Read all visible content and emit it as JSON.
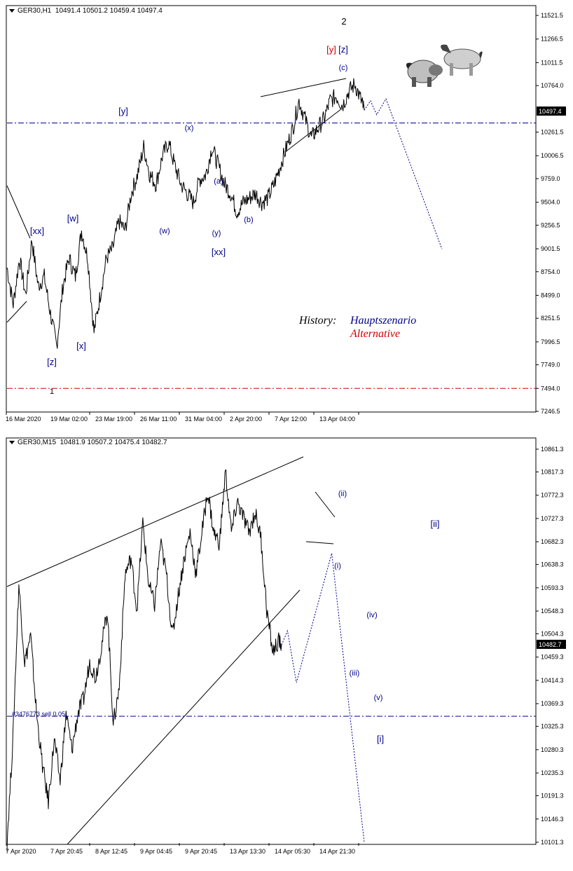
{
  "chart_data": [
    {
      "type": "line",
      "symbol": "GER30,H1",
      "ohlc": "10491.4 10501.2 10459.4 10497.4",
      "current_price": "10497.4",
      "yticks": [
        "11521.5",
        "11266.5",
        "11011.5",
        "10764.0",
        "10497.4",
        "10261.5",
        "10006.5",
        "9759.0",
        "9504.0",
        "9256.5",
        "9001.5",
        "8754.0",
        "8499.0",
        "8251.5",
        "7996.5",
        "7749.0",
        "7494.0",
        "7246.5"
      ],
      "xticks": [
        "16 Mar 2020",
        "19 Mar 02:00",
        "23 Mar 19:00",
        "26 Mar 11:00",
        "31 Mar 04:00",
        "2 Apr 20:00",
        "7 Apr 12:00",
        "13 Apr 04:00"
      ],
      "ylim": [
        7246.5,
        11600
      ],
      "price_series": [
        [
          0,
          8800
        ],
        [
          2,
          8400
        ],
        [
          4,
          8900
        ],
        [
          6,
          8500
        ],
        [
          8,
          9100
        ],
        [
          10,
          8600
        ],
        [
          12,
          8700
        ],
        [
          14,
          8300
        ],
        [
          16,
          7950
        ],
        [
          18,
          8600
        ],
        [
          20,
          8900
        ],
        [
          22,
          8700
        ],
        [
          24,
          9200
        ],
        [
          26,
          8900
        ],
        [
          28,
          8100
        ],
        [
          30,
          8500
        ],
        [
          32,
          8900
        ],
        [
          34,
          9000
        ],
        [
          36,
          9300
        ],
        [
          38,
          9200
        ],
        [
          40,
          9600
        ],
        [
          42,
          9800
        ],
        [
          44,
          10100
        ],
        [
          46,
          9800
        ],
        [
          48,
          9700
        ],
        [
          50,
          10000
        ],
        [
          52,
          10150
        ],
        [
          54,
          9900
        ],
        [
          56,
          9700
        ],
        [
          58,
          9600
        ],
        [
          60,
          9500
        ],
        [
          62,
          9750
        ],
        [
          64,
          9800
        ],
        [
          66,
          10100
        ],
        [
          68,
          9900
        ],
        [
          70,
          9700
        ],
        [
          72,
          9600
        ],
        [
          74,
          9400
        ],
        [
          76,
          9500
        ],
        [
          78,
          9550
        ],
        [
          80,
          9600
        ],
        [
          82,
          9500
        ],
        [
          84,
          9550
        ],
        [
          86,
          9700
        ],
        [
          88,
          9900
        ],
        [
          90,
          10100
        ],
        [
          92,
          10300
        ],
        [
          94,
          10600
        ],
        [
          96,
          10400
        ],
        [
          98,
          10200
        ],
        [
          100,
          10300
        ],
        [
          102,
          10400
        ],
        [
          104,
          10600
        ],
        [
          106,
          10650
        ],
        [
          108,
          10550
        ],
        [
          110,
          10700
        ],
        [
          112,
          10780
        ],
        [
          114,
          10600
        ],
        [
          115,
          10497
        ]
      ],
      "forecast": [
        [
          115,
          10497
        ],
        [
          117,
          10600
        ],
        [
          119,
          10450
        ],
        [
          122,
          10620
        ],
        [
          140,
          9000
        ]
      ],
      "hlines": [
        {
          "value": 10360,
          "color": "#00008b"
        },
        {
          "value": 7494,
          "color": "#cc0000"
        }
      ],
      "wave_labels": [
        "[xx]",
        "[w]",
        "[x]",
        "[z]",
        "1",
        "[y]",
        "(x)",
        "(w)",
        "(a)",
        "(y)",
        "[xx]",
        "(b)",
        "[y]",
        "[z]",
        "(c)",
        "2"
      ],
      "legend_title": "History:",
      "legend_main": "Hauptszenario",
      "legend_alt": "Alternative",
      "colors": {
        "main": "#00008b",
        "alt": "#cc0000",
        "price": "#000000"
      }
    },
    {
      "type": "line",
      "symbol": "GER30,M15",
      "ohlc": "10481.9 10507.2 10475.4 10482.7",
      "current_price": "10482.7",
      "yticks": [
        "10861.3",
        "10817.3",
        "10772.3",
        "10727.3",
        "10682.3",
        "10638.3",
        "10593.3",
        "10548.3",
        "10504.3",
        "10482.7",
        "10459.3",
        "10414.3",
        "10369.3",
        "10325.3",
        "10280.3",
        "10235.3",
        "10191.3",
        "10146.3",
        "10101.3"
      ],
      "xticks": [
        "7 Apr 2020",
        "7 Apr 20:45",
        "8 Apr 12:45",
        "9 Apr 04:45",
        "9 Apr 20:45",
        "13 Apr 13:30",
        "14 Apr 05:30",
        "14 Apr 21:30"
      ],
      "ylim": [
        10101.3,
        10880
      ],
      "price_series": [
        [
          0,
          10101
        ],
        [
          2,
          10300
        ],
        [
          4,
          10600
        ],
        [
          6,
          10450
        ],
        [
          8,
          10500
        ],
        [
          10,
          10350
        ],
        [
          12,
          10250
        ],
        [
          14,
          10180
        ],
        [
          16,
          10300
        ],
        [
          18,
          10220
        ],
        [
          20,
          10350
        ],
        [
          22,
          10280
        ],
        [
          24,
          10350
        ],
        [
          26,
          10380
        ],
        [
          28,
          10450
        ],
        [
          30,
          10420
        ],
        [
          32,
          10480
        ],
        [
          34,
          10550
        ],
        [
          36,
          10330
        ],
        [
          38,
          10400
        ],
        [
          40,
          10620
        ],
        [
          42,
          10650
        ],
        [
          44,
          10550
        ],
        [
          46,
          10720
        ],
        [
          48,
          10600
        ],
        [
          50,
          10560
        ],
        [
          52,
          10680
        ],
        [
          54,
          10620
        ],
        [
          56,
          10500
        ],
        [
          58,
          10580
        ],
        [
          60,
          10650
        ],
        [
          62,
          10700
        ],
        [
          64,
          10620
        ],
        [
          66,
          10700
        ],
        [
          68,
          10780
        ],
        [
          70,
          10700
        ],
        [
          72,
          10680
        ],
        [
          74,
          10820
        ],
        [
          76,
          10700
        ],
        [
          78,
          10760
        ],
        [
          80,
          10730
        ],
        [
          82,
          10700
        ],
        [
          84,
          10740
        ],
        [
          86,
          10690
        ],
        [
          88,
          10550
        ],
        [
          90,
          10470
        ],
        [
          92,
          10490
        ],
        [
          93,
          10483
        ]
      ],
      "forecast": [
        [
          93,
          10483
        ],
        [
          95,
          10510
        ],
        [
          98,
          10410
        ],
        [
          110,
          10660
        ],
        [
          121,
          10101
        ]
      ],
      "hlines": [
        {
          "value": 10345,
          "color": "#00008b"
        }
      ],
      "order_label": "#3476773 sell 0.05",
      "wave_labels": [
        "(ii)",
        "(i)",
        "(iv)",
        "(iii)",
        "(v)",
        "[i]",
        "[ii]"
      ],
      "colors": {
        "main": "#00008b",
        "price": "#000000"
      }
    }
  ]
}
